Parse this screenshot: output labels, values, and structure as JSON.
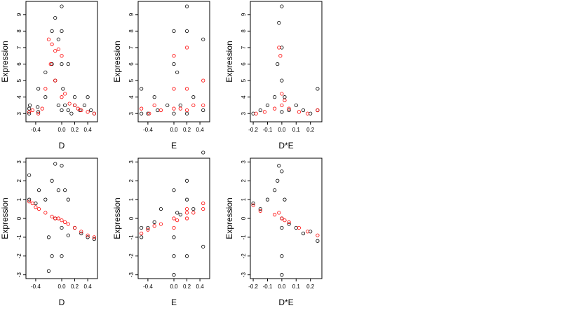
{
  "colors": {
    "background": "#ffffff",
    "open_points": "#000000",
    "highlight_points": "#ff0000",
    "frame": "#000000"
  },
  "chart_data": [
    {
      "type": "scatter",
      "xlabel": "D",
      "ylabel": "Expression",
      "xlim": [
        -0.55,
        0.55
      ],
      "ylim": [
        2.5,
        9.8
      ],
      "xticks": [
        -0.4,
        0.0,
        0.2,
        0.4
      ],
      "xtick_labels": [
        "-0.4",
        "0.0",
        "0.2",
        "0.4"
      ],
      "yticks": [
        3,
        4,
        5,
        6,
        7,
        8,
        9
      ],
      "ytick_labels": [
        "3",
        "4",
        "5",
        "6",
        "7",
        "8",
        "9"
      ],
      "series": [
        {
          "color": "#000000",
          "fill": "none",
          "points": [
            [
              -0.5,
              3.0
            ],
            [
              -0.5,
              3.3
            ],
            [
              -0.49,
              3.5
            ],
            [
              -0.37,
              3.4
            ],
            [
              -0.36,
              3.1
            ],
            [
              -0.36,
              4.5
            ],
            [
              -0.25,
              4.0
            ],
            [
              -0.25,
              5.5
            ],
            [
              -0.15,
              6.0
            ],
            [
              -0.15,
              8.0
            ],
            [
              -0.1,
              8.8
            ],
            [
              -0.1,
              5.0
            ],
            [
              -0.05,
              7.5
            ],
            [
              -0.05,
              3.5
            ],
            [
              0.0,
              9.5
            ],
            [
              0.0,
              8.0
            ],
            [
              0.0,
              6.0
            ],
            [
              0.0,
              3.2
            ],
            [
              0.02,
              4.5
            ],
            [
              0.05,
              3.5
            ],
            [
              0.1,
              6.0
            ],
            [
              0.1,
              3.2
            ],
            [
              0.15,
              3.0
            ],
            [
              0.2,
              4.0
            ],
            [
              0.2,
              3.5
            ],
            [
              0.28,
              3.2
            ],
            [
              0.35,
              3.5
            ],
            [
              0.4,
              4.0
            ],
            [
              0.45,
              3.2
            ],
            [
              0.5,
              3.0
            ]
          ]
        },
        {
          "color": "#ff0000",
          "fill": "none",
          "points": [
            [
              -0.5,
              3.1
            ],
            [
              -0.45,
              3.2
            ],
            [
              -0.36,
              3.0
            ],
            [
              -0.3,
              3.3
            ],
            [
              -0.25,
              4.5
            ],
            [
              -0.2,
              7.5
            ],
            [
              -0.17,
              6.0
            ],
            [
              -0.15,
              7.2
            ],
            [
              -0.1,
              6.8
            ],
            [
              -0.1,
              5.0
            ],
            [
              -0.05,
              6.9
            ],
            [
              0.0,
              6.5
            ],
            [
              0.0,
              4.0
            ],
            [
              0.05,
              4.2
            ],
            [
              0.12,
              3.6
            ],
            [
              0.2,
              3.5
            ],
            [
              0.25,
              3.3
            ],
            [
              0.3,
              3.2
            ],
            [
              0.4,
              3.1
            ],
            [
              0.5,
              3.0
            ]
          ]
        }
      ]
    },
    {
      "type": "scatter",
      "xlabel": "E",
      "ylabel": "Expression",
      "xlim": [
        -0.55,
        0.55
      ],
      "ylim": [
        2.5,
        9.8
      ],
      "xticks": [
        -0.4,
        0.0,
        0.2,
        0.4
      ],
      "xtick_labels": [
        "-0.4",
        "0.0",
        "0.2",
        "0.4"
      ],
      "yticks": [
        3,
        4,
        5,
        6,
        7,
        8,
        9
      ],
      "ytick_labels": [
        "3",
        "4",
        "5",
        "6",
        "7",
        "8",
        "9"
      ],
      "series": [
        {
          "color": "#000000",
          "fill": "none",
          "points": [
            [
              -0.5,
              3.0
            ],
            [
              -0.5,
              4.5
            ],
            [
              -0.4,
              3.0
            ],
            [
              -0.3,
              4.0
            ],
            [
              -0.25,
              3.2
            ],
            [
              -0.1,
              3.5
            ],
            [
              0.0,
              8.0
            ],
            [
              0.0,
              6.0
            ],
            [
              0.0,
              3.0
            ],
            [
              0.05,
              5.5
            ],
            [
              0.1,
              3.5
            ],
            [
              0.2,
              9.5
            ],
            [
              0.2,
              8.0
            ],
            [
              0.2,
              3.0
            ],
            [
              0.3,
              4.0
            ],
            [
              0.45,
              7.5
            ],
            [
              0.45,
              3.2
            ]
          ]
        },
        {
          "color": "#ff0000",
          "fill": "none",
          "points": [
            [
              -0.5,
              3.3
            ],
            [
              -0.38,
              3.0
            ],
            [
              -0.3,
              3.5
            ],
            [
              -0.2,
              3.2
            ],
            [
              0.0,
              6.5
            ],
            [
              0.0,
              4.5
            ],
            [
              0.0,
              3.3
            ],
            [
              0.1,
              3.3
            ],
            [
              0.2,
              7.0
            ],
            [
              0.2,
              4.5
            ],
            [
              0.2,
              3.2
            ],
            [
              0.3,
              3.5
            ],
            [
              0.45,
              5.0
            ],
            [
              0.45,
              3.5
            ]
          ]
        }
      ]
    },
    {
      "type": "scatter",
      "xlabel": "D*E",
      "ylabel": "Expression",
      "xlim": [
        -0.22,
        0.28
      ],
      "ylim": [
        2.5,
        9.8
      ],
      "xticks": [
        -0.2,
        -0.1,
        0.0,
        0.1,
        0.2
      ],
      "xtick_labels": [
        "-0.2",
        "-0.1",
        "0.0",
        "0.1",
        "0.2"
      ],
      "yticks": [
        3,
        4,
        5,
        6,
        7,
        8,
        9
      ],
      "ytick_labels": [
        "3",
        "4",
        "5",
        "6",
        "7",
        "8",
        "9"
      ],
      "series": [
        {
          "color": "#000000",
          "fill": "none",
          "points": [
            [
              -0.2,
              3.0
            ],
            [
              -0.15,
              3.2
            ],
            [
              -0.1,
              3.5
            ],
            [
              -0.05,
              4.0
            ],
            [
              -0.03,
              6.0
            ],
            [
              -0.02,
              8.5
            ],
            [
              0.0,
              9.5
            ],
            [
              0.0,
              7.0
            ],
            [
              0.0,
              5.0
            ],
            [
              0.0,
              3.1
            ],
            [
              0.02,
              4.0
            ],
            [
              0.05,
              3.2
            ],
            [
              0.1,
              3.5
            ],
            [
              0.15,
              3.2
            ],
            [
              0.2,
              3.0
            ],
            [
              0.25,
              4.5
            ],
            [
              0.25,
              3.2
            ]
          ]
        },
        {
          "color": "#ff0000",
          "fill": "none",
          "points": [
            [
              -0.18,
              3.0
            ],
            [
              -0.12,
              3.1
            ],
            [
              -0.05,
              3.3
            ],
            [
              -0.02,
              7.0
            ],
            [
              -0.01,
              6.5
            ],
            [
              0.0,
              4.2
            ],
            [
              0.0,
              3.5
            ],
            [
              0.02,
              3.8
            ],
            [
              0.05,
              3.3
            ],
            [
              0.12,
              3.1
            ],
            [
              0.18,
              3.0
            ],
            [
              0.25,
              3.2
            ]
          ]
        }
      ]
    },
    {
      "type": "scatter",
      "xlabel": "D",
      "ylabel": "Expression",
      "xlim": [
        -0.55,
        0.55
      ],
      "ylim": [
        -3.2,
        3.2
      ],
      "xticks": [
        -0.4,
        0.0,
        0.2,
        0.4
      ],
      "xtick_labels": [
        "-0.4",
        "0.0",
        "0.2",
        "0.4"
      ],
      "yticks": [
        -3,
        -2,
        -1,
        0,
        1,
        2,
        3
      ],
      "ytick_labels": [
        "-3",
        "-2",
        "-1",
        "0",
        "1",
        "2",
        "3"
      ],
      "series": [
        {
          "color": "#000000",
          "fill": "none",
          "points": [
            [
              -0.5,
              1.0
            ],
            [
              -0.5,
              2.3
            ],
            [
              -0.4,
              0.8
            ],
            [
              -0.35,
              1.5
            ],
            [
              -0.25,
              1.0
            ],
            [
              -0.2,
              -1.0
            ],
            [
              -0.2,
              -2.8
            ],
            [
              -0.15,
              2.0
            ],
            [
              -0.15,
              -2.0
            ],
            [
              -0.1,
              2.9
            ],
            [
              -0.1,
              0.0
            ],
            [
              -0.05,
              1.5
            ],
            [
              0.0,
              2.8
            ],
            [
              0.0,
              -0.5
            ],
            [
              0.0,
              -2.0
            ],
            [
              0.05,
              1.5
            ],
            [
              0.1,
              -0.9
            ],
            [
              0.1,
              1.0
            ],
            [
              0.2,
              -0.5
            ],
            [
              0.3,
              -0.8
            ],
            [
              0.4,
              -1.0
            ],
            [
              0.5,
              -1.1
            ]
          ]
        },
        {
          "color": "#ff0000",
          "fill": "none",
          "points": [
            [
              -0.5,
              0.9
            ],
            [
              -0.45,
              0.8
            ],
            [
              -0.4,
              0.6
            ],
            [
              -0.35,
              0.5
            ],
            [
              -0.25,
              0.3
            ],
            [
              -0.15,
              0.1
            ],
            [
              -0.1,
              0.0
            ],
            [
              -0.05,
              0.0
            ],
            [
              0.0,
              -0.1
            ],
            [
              0.05,
              -0.2
            ],
            [
              0.1,
              -0.3
            ],
            [
              0.2,
              -0.5
            ],
            [
              0.3,
              -0.7
            ],
            [
              0.4,
              -0.9
            ],
            [
              0.5,
              -1.0
            ]
          ]
        }
      ]
    },
    {
      "type": "scatter",
      "xlabel": "E",
      "ylabel": "Expression",
      "xlim": [
        -0.55,
        0.55
      ],
      "ylim": [
        -3.2,
        3.2
      ],
      "xticks": [
        -0.4,
        0.0,
        0.2,
        0.4
      ],
      "xtick_labels": [
        "-0.4",
        "0.0",
        "0.2",
        "0.4"
      ],
      "yticks": [
        -3,
        -2,
        -1,
        0,
        1,
        2,
        3
      ],
      "ytick_labels": [
        "-3",
        "-2",
        "-1",
        "0",
        "1",
        "2",
        "3"
      ],
      "series": [
        {
          "color": "#000000",
          "fill": "none",
          "points": [
            [
              -0.5,
              -0.5
            ],
            [
              -0.5,
              -1.0
            ],
            [
              -0.4,
              -0.5
            ],
            [
              -0.3,
              -0.2
            ],
            [
              -0.2,
              0.5
            ],
            [
              0.0,
              1.5
            ],
            [
              0.0,
              -1.0
            ],
            [
              0.0,
              -2.0
            ],
            [
              0.0,
              -3.0
            ],
            [
              0.05,
              0.3
            ],
            [
              0.1,
              0.2
            ],
            [
              0.2,
              2.0
            ],
            [
              0.2,
              1.0
            ],
            [
              0.2,
              -2.0
            ],
            [
              0.3,
              0.5
            ],
            [
              0.45,
              3.5
            ],
            [
              0.45,
              -1.5
            ]
          ]
        },
        {
          "color": "#ff0000",
          "fill": "none",
          "points": [
            [
              -0.5,
              -0.8
            ],
            [
              -0.4,
              -0.6
            ],
            [
              -0.3,
              -0.4
            ],
            [
              -0.2,
              -0.3
            ],
            [
              0.0,
              0.0
            ],
            [
              0.0,
              -0.5
            ],
            [
              0.05,
              -0.1
            ],
            [
              0.2,
              0.5
            ],
            [
              0.2,
              0.3
            ],
            [
              0.2,
              0.0
            ],
            [
              0.3,
              0.3
            ],
            [
              0.45,
              0.8
            ],
            [
              0.45,
              0.5
            ]
          ]
        }
      ]
    },
    {
      "type": "scatter",
      "xlabel": "D*E",
      "ylabel": "Expression",
      "xlim": [
        -0.22,
        0.28
      ],
      "ylim": [
        -3.2,
        3.2
      ],
      "xticks": [
        -0.2,
        -0.1,
        0.0,
        0.1,
        0.2
      ],
      "xtick_labels": [
        "-0.2",
        "-0.1",
        "0.0",
        "0.1",
        "0.2"
      ],
      "yticks": [
        -3,
        -2,
        -1,
        0,
        1,
        2,
        3
      ],
      "ytick_labels": [
        "-3",
        "-2",
        "-1",
        "0",
        "1",
        "2",
        "3"
      ],
      "series": [
        {
          "color": "#000000",
          "fill": "none",
          "points": [
            [
              -0.2,
              0.8
            ],
            [
              -0.15,
              0.5
            ],
            [
              -0.1,
              1.0
            ],
            [
              -0.05,
              1.5
            ],
            [
              -0.03,
              2.0
            ],
            [
              -0.02,
              2.8
            ],
            [
              0.0,
              2.5
            ],
            [
              0.0,
              0.0
            ],
            [
              0.0,
              -0.5
            ],
            [
              0.0,
              -2.0
            ],
            [
              0.0,
              -3.0
            ],
            [
              0.02,
              1.0
            ],
            [
              0.05,
              -0.3
            ],
            [
              0.1,
              -0.5
            ],
            [
              0.15,
              -0.8
            ],
            [
              0.2,
              -0.7
            ],
            [
              0.25,
              -1.2
            ]
          ]
        },
        {
          "color": "#ff0000",
          "fill": "none",
          "points": [
            [
              -0.2,
              0.7
            ],
            [
              -0.15,
              0.4
            ],
            [
              -0.05,
              0.2
            ],
            [
              -0.02,
              0.3
            ],
            [
              0.0,
              0.0
            ],
            [
              0.02,
              -0.1
            ],
            [
              0.05,
              -0.2
            ],
            [
              0.12,
              -0.5
            ],
            [
              0.18,
              -0.7
            ],
            [
              0.25,
              -0.9
            ]
          ]
        }
      ]
    }
  ]
}
